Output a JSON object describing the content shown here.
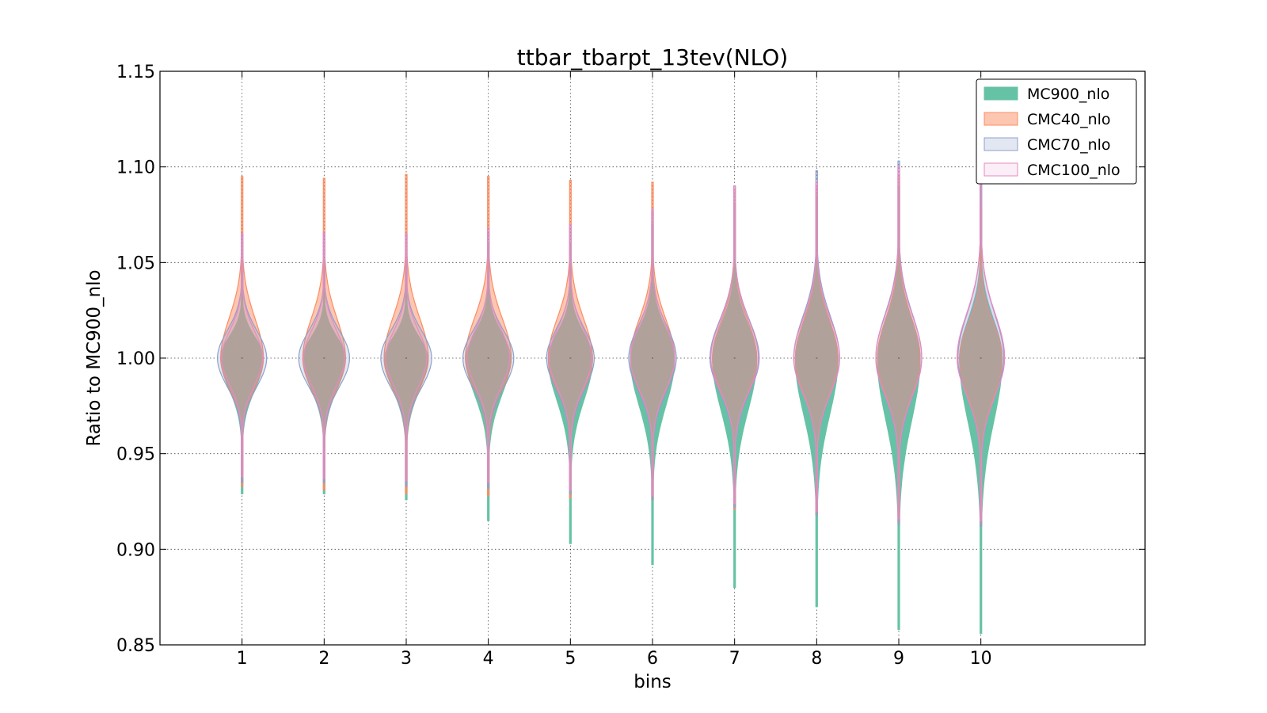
{
  "chart_data": {
    "type": "violin",
    "title": "ttbar_tbarpt_13tev(NLO)",
    "xlabel": "bins",
    "ylabel": "Ratio to MC900_nlo",
    "x_ticks": [
      "1",
      "2",
      "3",
      "4",
      "5",
      "6",
      "7",
      "8",
      "9",
      "10"
    ],
    "x_positions": [
      1,
      2,
      3,
      4,
      5,
      6,
      7,
      8,
      9,
      10
    ],
    "xlim": [
      0,
      12
    ],
    "ylim": [
      0.85,
      1.15
    ],
    "y_ticks": [
      "0.85",
      "0.90",
      "0.95",
      "1.00",
      "1.05",
      "1.10",
      "1.15"
    ],
    "y_tick_values": [
      0.85,
      0.9,
      0.95,
      1.0,
      1.05,
      1.1,
      1.15
    ],
    "grid": true,
    "legend_position": "top-right",
    "series": [
      {
        "name": "MC900_nlo",
        "fill": "#66c2a5",
        "stroke": "#66c2a5",
        "fill_opacity": 1,
        "ranges": [
          [
            0.929,
            1.05
          ],
          [
            0.929,
            1.05
          ],
          [
            0.926,
            1.05
          ],
          [
            0.915,
            1.06
          ],
          [
            0.903,
            1.06
          ],
          [
            0.892,
            1.07
          ],
          [
            0.88,
            1.08
          ],
          [
            0.87,
            1.085
          ],
          [
            0.858,
            1.09
          ],
          [
            0.856,
            1.09
          ]
        ],
        "half_widths": [
          0.26,
          0.26,
          0.26,
          0.27,
          0.27,
          0.27,
          0.27,
          0.26,
          0.26,
          0.26
        ]
      },
      {
        "name": "CMC40_nlo",
        "fill": "#fc8d62",
        "stroke": "#fc8d62",
        "fill_opacity": 0.5,
        "ranges": [
          [
            0.933,
            1.095
          ],
          [
            0.931,
            1.094
          ],
          [
            0.929,
            1.096
          ],
          [
            0.928,
            1.095
          ],
          [
            0.927,
            1.093
          ],
          [
            0.926,
            1.092
          ],
          [
            0.921,
            1.088
          ],
          [
            0.918,
            1.09
          ],
          [
            0.914,
            1.095
          ],
          [
            0.913,
            1.08
          ]
        ],
        "half_widths": [
          0.26,
          0.26,
          0.27,
          0.28,
          0.27,
          0.27,
          0.27,
          0.26,
          0.26,
          0.26
        ]
      },
      {
        "name": "CMC70_nlo",
        "fill": "#8da0cb",
        "stroke": "#8da0cb",
        "fill_opacity": 0.25,
        "ranges": [
          [
            0.935,
            1.065
          ],
          [
            0.935,
            1.065
          ],
          [
            0.933,
            1.065
          ],
          [
            0.932,
            1.065
          ],
          [
            0.929,
            1.068
          ],
          [
            0.926,
            1.076
          ],
          [
            0.922,
            1.09
          ],
          [
            0.918,
            1.098
          ],
          [
            0.913,
            1.103
          ],
          [
            0.912,
            1.105
          ]
        ],
        "half_widths": [
          0.3,
          0.31,
          0.31,
          0.31,
          0.29,
          0.29,
          0.3,
          0.28,
          0.28,
          0.28
        ]
      },
      {
        "name": "CMC100_nlo",
        "fill": "#e78ac3",
        "stroke": "#e78ac3",
        "fill_opacity": 0.15,
        "ranges": [
          [
            0.938,
            1.065
          ],
          [
            0.937,
            1.066
          ],
          [
            0.936,
            1.065
          ],
          [
            0.935,
            1.068
          ],
          [
            0.931,
            1.07
          ],
          [
            0.928,
            1.078
          ],
          [
            0.924,
            1.09
          ],
          [
            0.92,
            1.092
          ],
          [
            0.916,
            1.1
          ],
          [
            0.915,
            1.105
          ]
        ],
        "half_widths": [
          0.25,
          0.25,
          0.25,
          0.26,
          0.26,
          0.27,
          0.29,
          0.28,
          0.28,
          0.29
        ]
      }
    ]
  }
}
